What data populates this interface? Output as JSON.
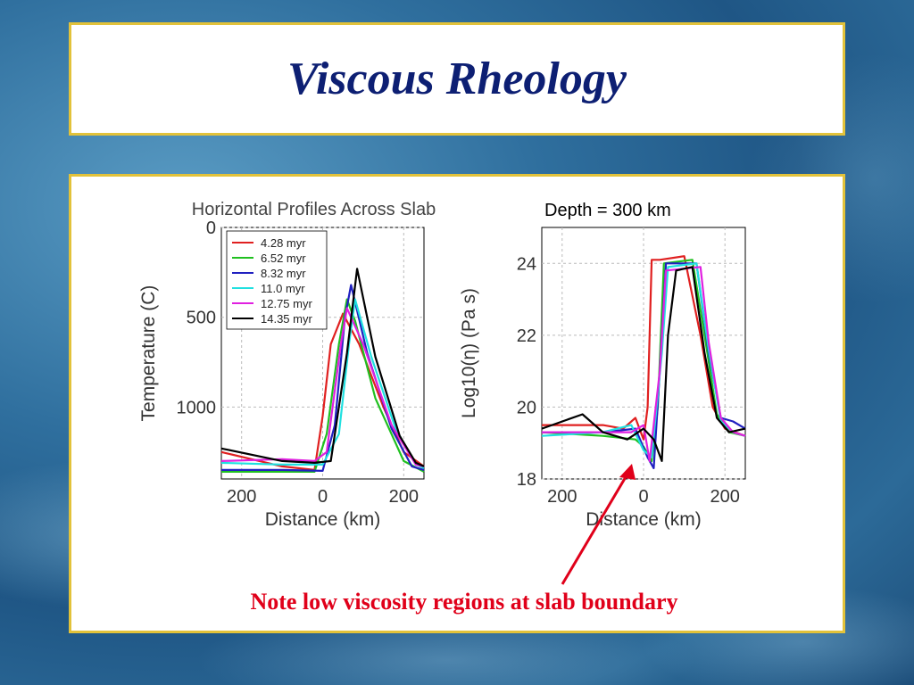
{
  "slide": {
    "title": "Viscous Rheology",
    "depth_label": "Depth = 300 km",
    "note": "Note low viscosity regions at slab boundary"
  },
  "colors": {
    "title": "#0d1f73",
    "border": "#e2c23a",
    "note": "#e0001a",
    "series": [
      "#e02020",
      "#20c020",
      "#2020c0",
      "#20e0e0",
      "#e020e0",
      "#000000"
    ]
  },
  "chart_data": [
    {
      "type": "line",
      "title": "Horizontal Profiles Across Slab",
      "xlabel": "Distance (km)",
      "ylabel": "Temperature (C)",
      "xlim": [
        -250,
        250
      ],
      "ylim": [
        0,
        1400
      ],
      "y_inverted": true,
      "xticks": [
        -200,
        0,
        200
      ],
      "xticklabels": [
        "200",
        "0",
        "200"
      ],
      "yticks": [
        0,
        500,
        1000
      ],
      "yticklabels": [
        "0",
        "500",
        "1000"
      ],
      "grid": true,
      "legend": "top-left",
      "series": [
        {
          "name": "4.28 myr",
          "x": [
            -250,
            -100,
            -20,
            0,
            20,
            50,
            90,
            150,
            200,
            250
          ],
          "y": [
            1250,
            1330,
            1350,
            1050,
            650,
            480,
            650,
            1000,
            1250,
            1330
          ]
        },
        {
          "name": "6.52 myr",
          "x": [
            -250,
            -100,
            -20,
            10,
            40,
            60,
            80,
            130,
            200,
            250
          ],
          "y": [
            1360,
            1360,
            1360,
            1150,
            650,
            400,
            520,
            950,
            1300,
            1360
          ]
        },
        {
          "name": "8.32 myr",
          "x": [
            -250,
            -100,
            0,
            30,
            55,
            70,
            110,
            170,
            220,
            250
          ],
          "y": [
            1350,
            1350,
            1355,
            1100,
            500,
            320,
            700,
            1120,
            1330,
            1350
          ]
        },
        {
          "name": "11.0 myr",
          "x": [
            -250,
            -100,
            0,
            40,
            65,
            80,
            120,
            180,
            230,
            250
          ],
          "y": [
            1310,
            1320,
            1320,
            1150,
            650,
            400,
            720,
            1120,
            1320,
            1340
          ]
        },
        {
          "name": "12.75 myr",
          "x": [
            -250,
            -100,
            -20,
            10,
            45,
            60,
            100,
            170,
            230,
            250
          ],
          "y": [
            1300,
            1290,
            1300,
            1250,
            650,
            450,
            650,
            1100,
            1320,
            1330
          ]
        },
        {
          "name": "14.35 myr",
          "x": [
            -250,
            -100,
            -20,
            20,
            60,
            85,
            130,
            190,
            230,
            250
          ],
          "y": [
            1230,
            1300,
            1310,
            1300,
            700,
            230,
            720,
            1160,
            1310,
            1330
          ]
        }
      ]
    },
    {
      "type": "line",
      "title": "",
      "xlabel": "Distance (km)",
      "ylabel": "Log10(η) (Pa s)",
      "xlim": [
        -250,
        250
      ],
      "ylim": [
        18,
        25
      ],
      "xticks": [
        -200,
        0,
        200
      ],
      "xticklabels": [
        "200",
        "0",
        "200"
      ],
      "yticks": [
        18,
        20,
        22,
        24
      ],
      "yticklabels": [
        "18",
        "20",
        "22",
        "24"
      ],
      "grid": true,
      "legend": "none",
      "series": [
        {
          "name": "4.28 myr",
          "x": [
            -250,
            -100,
            -50,
            -20,
            0,
            10,
            20,
            40,
            100,
            140,
            170,
            200,
            250
          ],
          "y": [
            19.5,
            19.5,
            19.4,
            19.7,
            19.1,
            20.0,
            24.1,
            24.1,
            24.2,
            22.0,
            20.0,
            19.4,
            19.2
          ]
        },
        {
          "name": "6.52 myr",
          "x": [
            -250,
            -100,
            -20,
            0,
            20,
            35,
            50,
            120,
            150,
            180,
            210,
            250
          ],
          "y": [
            19.3,
            19.2,
            19.1,
            18.9,
            18.5,
            20.0,
            24.0,
            24.1,
            22.0,
            19.8,
            19.3,
            19.2
          ]
        },
        {
          "name": "8.32 myr",
          "x": [
            -250,
            -100,
            -20,
            10,
            25,
            40,
            55,
            130,
            160,
            190,
            220,
            250
          ],
          "y": [
            19.3,
            19.3,
            19.4,
            18.6,
            18.3,
            21.0,
            24.0,
            24.0,
            21.5,
            19.7,
            19.6,
            19.4
          ]
        },
        {
          "name": "11.0 myr",
          "x": [
            -250,
            -100,
            -30,
            0,
            20,
            45,
            60,
            130,
            160,
            190,
            220,
            250
          ],
          "y": [
            19.2,
            19.3,
            19.5,
            18.8,
            18.6,
            21.5,
            23.9,
            24.0,
            21.6,
            19.6,
            19.3,
            19.2
          ]
        },
        {
          "name": "12.75 myr",
          "x": [
            -250,
            -100,
            -30,
            0,
            15,
            40,
            55,
            140,
            160,
            190,
            220,
            250
          ],
          "y": [
            19.3,
            19.3,
            19.3,
            19.5,
            18.5,
            21.0,
            23.8,
            23.9,
            21.8,
            19.7,
            19.3,
            19.2
          ]
        },
        {
          "name": "14.35 myr",
          "x": [
            -250,
            -150,
            -100,
            -40,
            0,
            25,
            45,
            60,
            80,
            120,
            150,
            180,
            210,
            250
          ],
          "y": [
            19.4,
            19.8,
            19.3,
            19.1,
            19.4,
            19.1,
            18.5,
            22.0,
            23.8,
            23.9,
            21.5,
            19.7,
            19.3,
            19.4
          ]
        }
      ]
    }
  ]
}
